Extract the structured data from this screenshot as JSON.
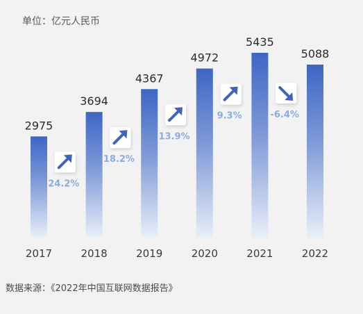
{
  "unit": "单位：亿元人民币",
  "source": "数据来源：《2022年中国互联网数据报告》",
  "colors": {
    "bar_top": "#3d66c4",
    "bar_bottom": "#e9eef8",
    "growth_text": "#8aaee0",
    "arrow": "#3f64b8",
    "background": "#f2f2f2"
  },
  "chart_data": {
    "type": "bar",
    "categories": [
      "2017",
      "2018",
      "2019",
      "2020",
      "2021",
      "2022"
    ],
    "values": [
      2975,
      3694,
      4367,
      4972,
      5435,
      5088
    ],
    "growth_labels": [
      "24.2%",
      "18.2%",
      "13.9%",
      "9.3%",
      "-6.4%"
    ],
    "growth_icons": [
      "arrow-up-icon",
      "arrow-up-icon",
      "arrow-up-icon",
      "arrow-up-icon",
      "arrow-down-icon"
    ],
    "ylabel": "亿元人民币",
    "grid": false,
    "legend": "none"
  }
}
